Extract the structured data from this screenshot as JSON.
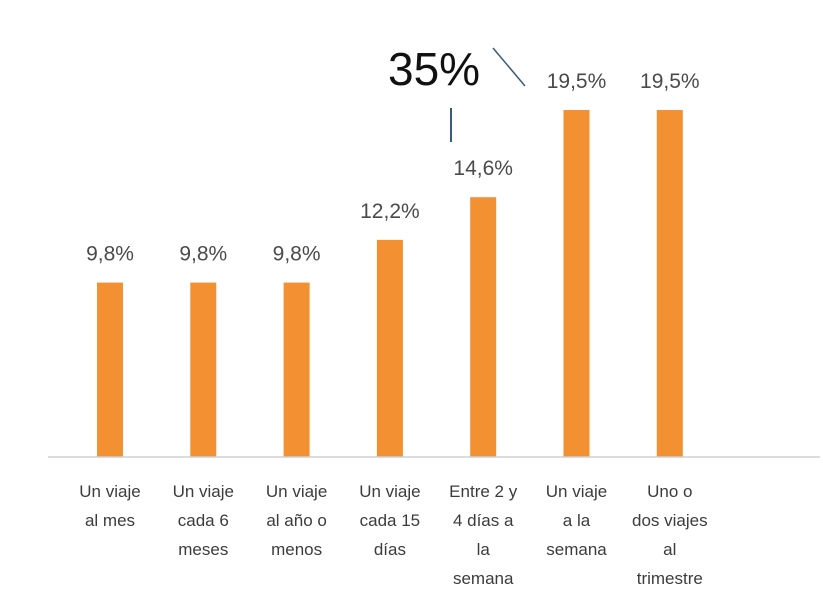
{
  "chart_data": {
    "type": "bar",
    "categories": [
      [
        "Un viaje",
        "al mes"
      ],
      [
        "Un viaje",
        "cada 6",
        "meses"
      ],
      [
        "Un viaje",
        "al año o",
        "menos"
      ],
      [
        "Un viaje",
        "cada 15",
        "días"
      ],
      [
        "Entre 2 y",
        "4 días a",
        "la",
        "semana"
      ],
      [
        "Un viaje",
        "a la",
        "semana"
      ],
      [
        "Uno o",
        "dos viajes",
        "al",
        "trimestre"
      ]
    ],
    "values": [
      9.8,
      9.8,
      9.8,
      12.2,
      14.6,
      19.5,
      19.5
    ],
    "value_labels": [
      "9,8%",
      "9,8%",
      "9,8%",
      "12,2%",
      "14,6%",
      "19,5%",
      "19,5%"
    ],
    "ylim": [
      0,
      21
    ],
    "bar_color": "#f39132",
    "grid": false,
    "legend": "none",
    "annotation": "35%"
  }
}
